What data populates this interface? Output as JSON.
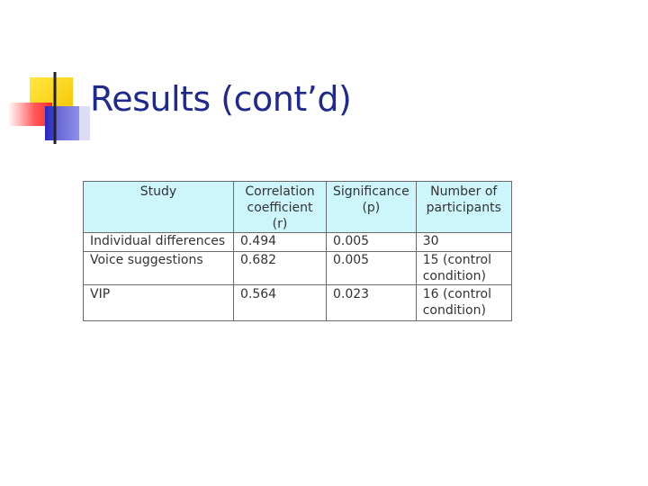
{
  "slide": {
    "title": "Results (cont’d)"
  },
  "table": {
    "headers": [
      "Study",
      "Correlation coefficient (r)",
      "Significance (p)",
      "Number of participants"
    ],
    "rows": [
      [
        "Individual differences",
        "0.494",
        "0.005",
        "30"
      ],
      [
        "Voice suggestions",
        "0.682",
        "0.005",
        "15 (control condition)"
      ],
      [
        "VIP",
        "0.564",
        "0.023",
        "16 (control condition)"
      ]
    ]
  },
  "colors": {
    "title": "#1f2a8c",
    "header_bg": "#ccf6fb",
    "deco_yellow": "#f7d400",
    "deco_red": "#ff3030",
    "deco_blue": "#2222bb"
  }
}
